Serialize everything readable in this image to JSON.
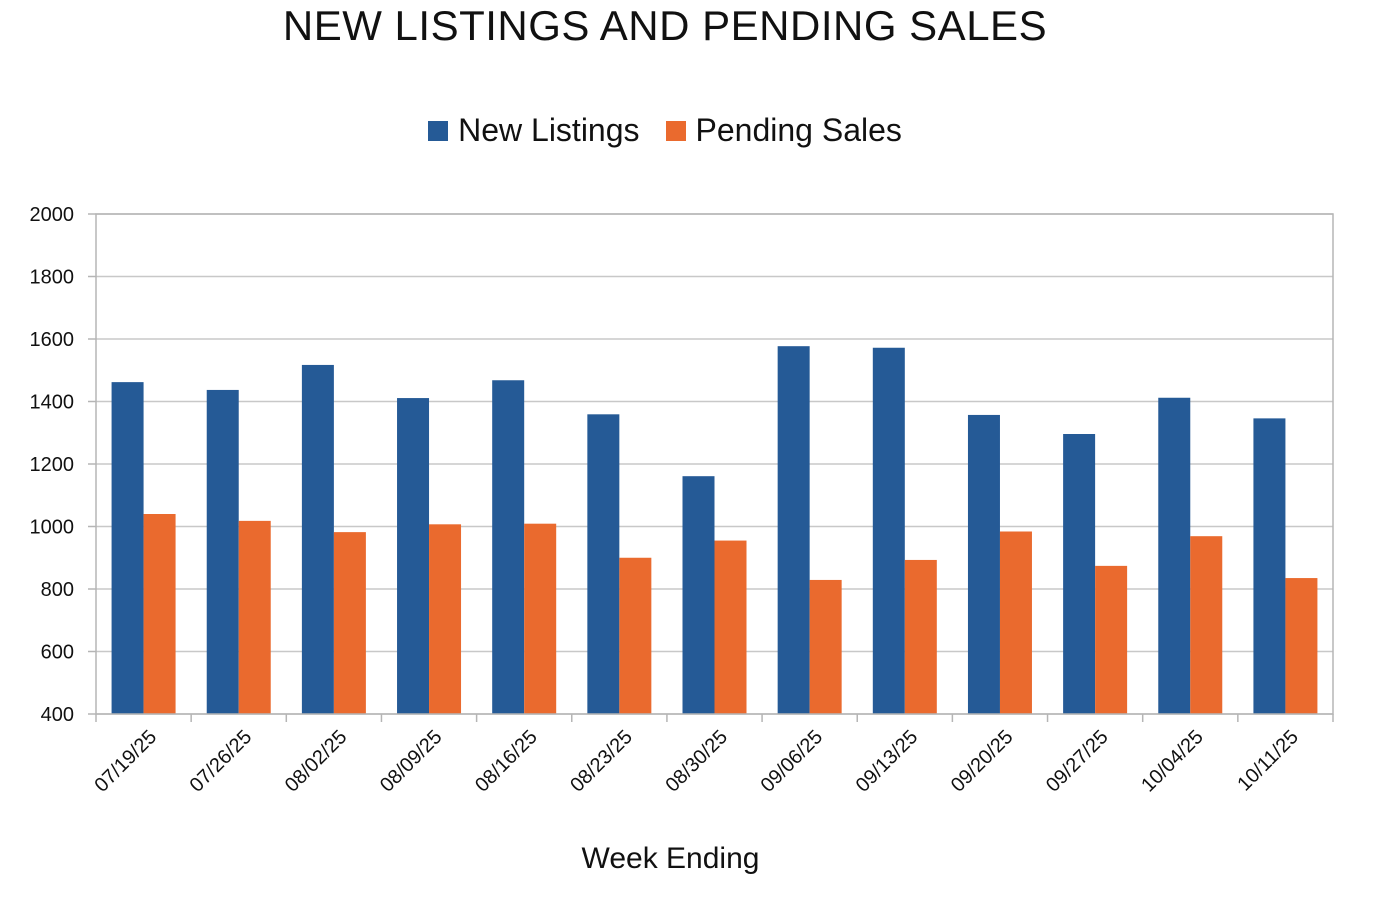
{
  "chart_data": {
    "type": "bar",
    "title": "NEW LISTINGS AND PENDING SALES",
    "xlabel": "Week Ending",
    "ylabel": "",
    "ylim": [
      400,
      2000
    ],
    "yticks": [
      400,
      600,
      800,
      1000,
      1200,
      1400,
      1600,
      1800,
      2000
    ],
    "grid": true,
    "legend_position": "top",
    "categories": [
      "07/19/25",
      "07/26/25",
      "08/02/25",
      "08/09/25",
      "08/16/25",
      "08/23/25",
      "08/30/25",
      "09/06/25",
      "09/13/25",
      "09/20/25",
      "09/27/25",
      "10/04/25",
      "10/11/25"
    ],
    "series": [
      {
        "name": "New Listings",
        "color": "#255a96",
        "values": [
          1462,
          1437,
          1517,
          1411,
          1468,
          1359,
          1161,
          1577,
          1572,
          1357,
          1296,
          1412,
          1346
        ]
      },
      {
        "name": "Pending Sales",
        "color": "#ea6a2e",
        "values": [
          1040,
          1018,
          982,
          1007,
          1009,
          900,
          955,
          829,
          893,
          984,
          874,
          969,
          835
        ]
      }
    ]
  }
}
